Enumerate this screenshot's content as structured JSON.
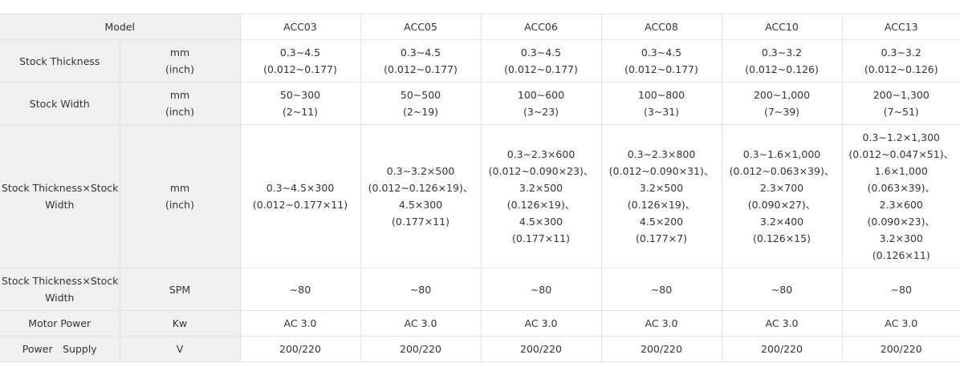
{
  "table": {
    "model_label": "Model",
    "models": [
      "ACC03",
      "ACC05",
      "ACC06",
      "ACC08",
      "ACC10",
      "ACC13"
    ],
    "rows": [
      {
        "label": "Stock Thickness",
        "unit": [
          "mm",
          "(inch)"
        ],
        "values": [
          [
            "0.3∼4.5",
            "(0.012~0.177)"
          ],
          [
            "0.3∼4.5",
            "(0.012~0.177)"
          ],
          [
            "0.3∼4.5",
            "(0.012~0.177)"
          ],
          [
            "0.3∼4.5",
            "(0.012~0.177)"
          ],
          [
            "0.3∼3.2",
            "(0.012~0.126)"
          ],
          [
            "0.3∼3.2",
            "(0.012~0.126)"
          ]
        ]
      },
      {
        "label": "Stock Width",
        "unit": [
          "mm",
          "(inch)"
        ],
        "values": [
          [
            "50∼300",
            "(2~11)"
          ],
          [
            "50∼500",
            "(2~19)"
          ],
          [
            "100∼600",
            "(3~23)"
          ],
          [
            "100∼800",
            "(3~31)"
          ],
          [
            "200∼1,000",
            "(7~39)"
          ],
          [
            "200∼1,300",
            "(7~51)"
          ]
        ]
      },
      {
        "label": [
          "Stock Thickness×Stock",
          "Width"
        ],
        "unit": [
          "mm",
          "(inch)"
        ],
        "values": [
          [
            "0.3∼4.5×300",
            "(0.012~0.177×11)"
          ],
          [
            "0.3∼3.2×500",
            "(0.012~0.126×19)、",
            "4.5×300",
            "(0.177×11)"
          ],
          [
            "0.3∼2.3×600",
            "(0.012~0.090×23)、",
            "3.2×500",
            "(0.126×19)、",
            "4.5×300",
            "(0.177×11)"
          ],
          [
            "0.3∼2.3×800",
            "(0.012~0.090×31)、",
            "3.2×500",
            "(0.126×19)、",
            "4.5×200",
            "(0.177×7)"
          ],
          [
            "0.3∼1.6×1,000",
            "(0.012~0.063×39)、",
            "2.3×700",
            "(0.090×27)、",
            "3.2×400",
            "(0.126×15)"
          ],
          [
            "0.3∼1.2×1,300",
            "(0.012~0.047×51)、",
            "1.6×1,000",
            "(0.063×39)、",
            "2.3×600",
            "(0.090×23)、",
            "3.2×300",
            "(0.126×11)"
          ]
        ]
      },
      {
        "label": [
          "Stock Thickness×Stock",
          "Width"
        ],
        "unit": [
          "SPM"
        ],
        "values": [
          [
            "∼80"
          ],
          [
            "∼80"
          ],
          [
            "∼80"
          ],
          [
            "∼80"
          ],
          [
            "∼80"
          ],
          [
            "∼80"
          ]
        ]
      },
      {
        "label": "Motor Power",
        "unit": [
          "Kw"
        ],
        "values": [
          [
            "AC 3.0"
          ],
          [
            "AC 3.0"
          ],
          [
            "AC 3.0"
          ],
          [
            "AC 3.0"
          ],
          [
            "AC 3.0"
          ],
          [
            "AC 3.0"
          ]
        ]
      },
      {
        "label": "Power　Supply",
        "unit": [
          "V"
        ],
        "values": [
          [
            "200/220"
          ],
          [
            "200/220"
          ],
          [
            "200/220"
          ],
          [
            "200/220"
          ],
          [
            "200/220"
          ],
          [
            "200/220"
          ]
        ]
      }
    ]
  }
}
